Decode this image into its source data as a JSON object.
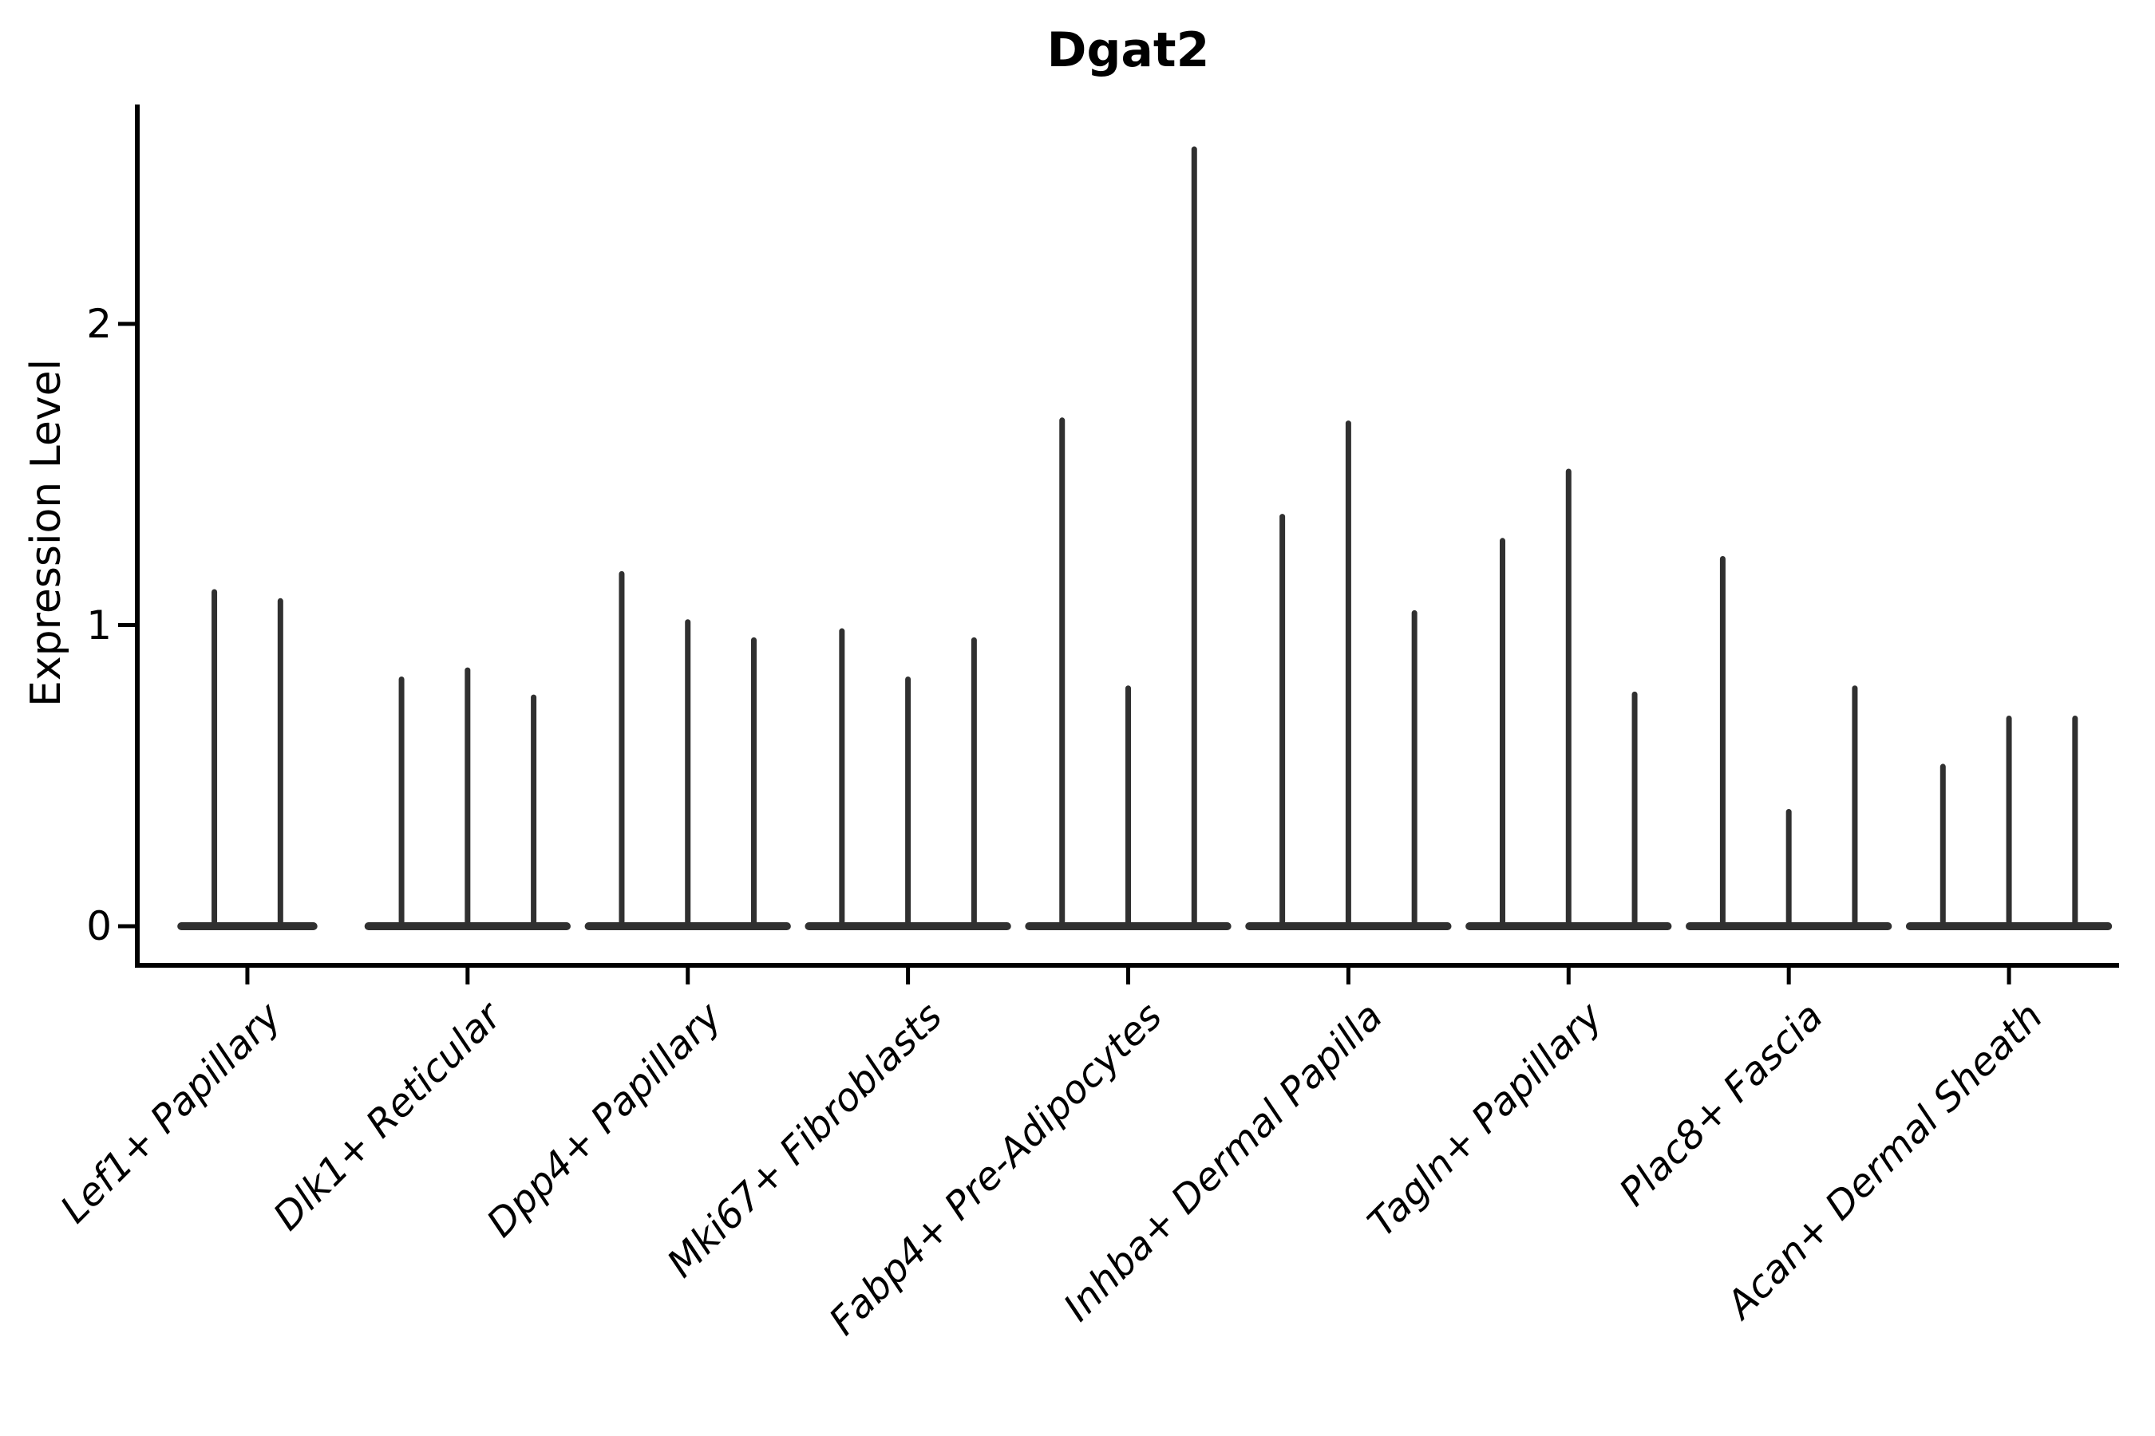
{
  "chart_data": {
    "type": "violin",
    "title": "Dgat2",
    "ylabel": "Expression Level",
    "xlabel": "",
    "yticks": [
      "0",
      "1",
      "2"
    ],
    "ytick_values": [
      0,
      1,
      2
    ],
    "ylim": [
      -0.13,
      2.73
    ],
    "grid": false,
    "legend": "none",
    "description": "Collapsed violins: flat baseline at 0 per group with thin vertical spikes reaching each violin's maximum expression value",
    "categories": [
      "Lef1+ Papillary",
      "Dlk1+ Reticular",
      "Dpp4+ Papillary",
      "Mki67+ Fibroblasts",
      "Fabp4+ Pre-Adipocytes",
      "Inhba+ Dermal Papilla",
      "Tagln+ Papillary",
      "Plac8+ Fascia",
      "Acan+ Dermal Sheath"
    ],
    "groups": [
      {
        "category": "Lef1+ Papillary",
        "violin_max_values": [
          1.11,
          1.08
        ]
      },
      {
        "category": "Dlk1+ Reticular",
        "violin_max_values": [
          0.82,
          0.85,
          0.76
        ]
      },
      {
        "category": "Dpp4+ Papillary",
        "violin_max_values": [
          1.17,
          1.01,
          0.95
        ]
      },
      {
        "category": "Mki67+ Fibroblasts",
        "violin_max_values": [
          0.98,
          0.82,
          0.95
        ]
      },
      {
        "category": "Fabp4+ Pre-Adipocytes",
        "violin_max_values": [
          1.68,
          0.79,
          2.58
        ]
      },
      {
        "category": "Inhba+ Dermal Papilla",
        "violin_max_values": [
          1.36,
          1.67,
          1.04
        ]
      },
      {
        "category": "Tagln+ Papillary",
        "violin_max_values": [
          1.28,
          1.51,
          0.77
        ]
      },
      {
        "category": "Plac8+ Fascia",
        "violin_max_values": [
          1.22,
          0.38,
          0.79
        ]
      },
      {
        "category": "Acan+ Dermal Sheath",
        "violin_max_values": [
          0.53,
          0.69,
          0.69
        ]
      }
    ],
    "colors": {
      "violin": "#303030",
      "axis": "#000000",
      "background": "#ffffff"
    }
  }
}
